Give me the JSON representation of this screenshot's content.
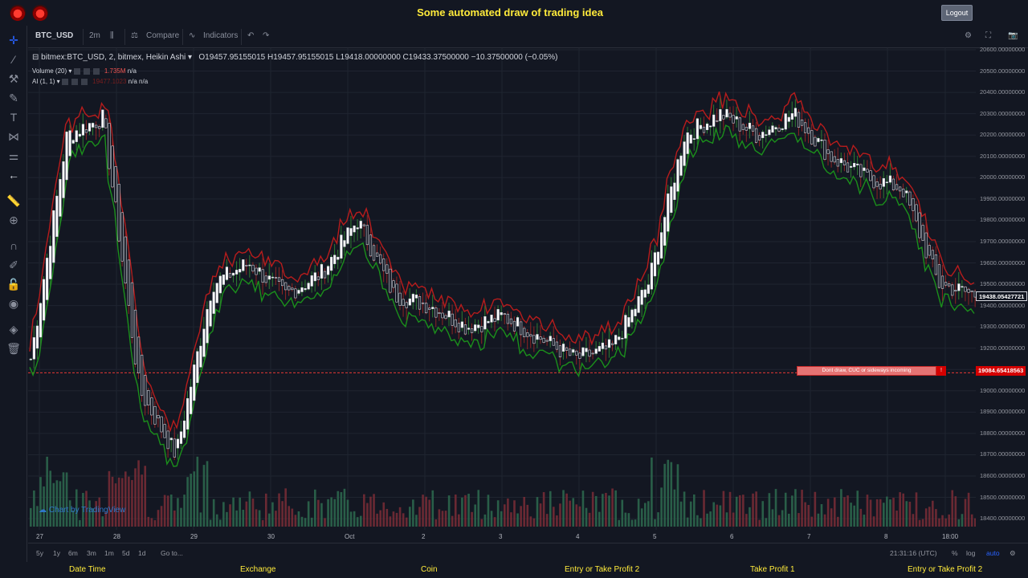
{
  "header": {
    "title": "Some automated draw of trading idea",
    "logout": "Logout"
  },
  "toolbar": {
    "symbol": "BTC_USD",
    "interval": "2m",
    "compare": "Compare",
    "indicators": "Indicators"
  },
  "legend": {
    "main": "bitmex:BTC_USD, 2, bitmex, Heikin Ashi",
    "o": "O19457.95155015",
    "h": "H19457.95155015",
    "l": "L19418.00000000",
    "c": "C19433.37500000",
    "change": "−10.37500000 (−0.05%)",
    "vol_label": "Volume (20)",
    "vol_value": "1.735M",
    "vol_na": "n/a",
    "ai_label": "AI (1, 1)",
    "ai_value": "19477.1023",
    "ai_na1": "n/a",
    "ai_na2": "n/a"
  },
  "y_axis": [
    "20600.00000000",
    "20500.00000000",
    "20400.00000000",
    "20300.00000000",
    "20200.00000000",
    "20100.00000000",
    "20000.00000000",
    "19900.00000000",
    "19800.00000000",
    "19700.00000000",
    "19600.00000000",
    "19500.00000000",
    "19400.00000000",
    "19300.00000000",
    "19200.00000000",
    "19100.00000000",
    "19000.00000000",
    "18900.00000000",
    "18800.00000000",
    "18700.00000000",
    "18600.00000000",
    "18500.00000000",
    "18400.00000000"
  ],
  "x_axis": [
    "27",
    "28",
    "29",
    "30",
    "Oct",
    "2",
    "3",
    "4",
    "5",
    "6",
    "7",
    "8",
    "18:00"
  ],
  "price_tags": {
    "last": "19438.05427721",
    "line": "19084.65418563"
  },
  "annotation": {
    "text": "Dont draw, CUC or sideways incoming",
    "mark": "!"
  },
  "watermark": "Chart by TradingView",
  "timeframes": [
    "5y",
    "1y",
    "6m",
    "3m",
    "1m",
    "5d",
    "1d"
  ],
  "goto": "Go to...",
  "clock": "21:31:16 (UTC)",
  "scale": {
    "percent": "%",
    "log": "log",
    "auto": "auto"
  },
  "footer": [
    "Date Time",
    "Exchange",
    "Coin",
    "Entry or Take Profit 2",
    "Take Profit 1",
    "Entry or Take Profit 2"
  ],
  "colors": {
    "up": "#26a69a",
    "down": "#ef5350",
    "accent": "#ffeb3b",
    "trail_green": "#1b8f1b",
    "trail_red": "#b71c1c",
    "hline": "#e53935"
  },
  "chart_data": {
    "type": "candlestick",
    "ylim": [
      18400,
      20600
    ],
    "series_sample": [
      19150,
      20200,
      20280,
      19000,
      18700,
      19500,
      19600,
      19450,
      19550,
      19800,
      19450,
      19400,
      19300,
      19350,
      19250,
      19150,
      19200,
      19500,
      20200,
      20300,
      20200,
      20300,
      20100,
      20000,
      19950,
      19500,
      19450
    ]
  }
}
